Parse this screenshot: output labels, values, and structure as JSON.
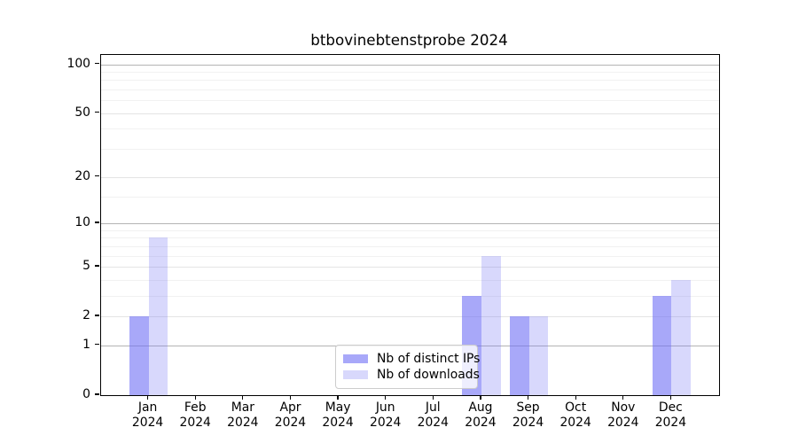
{
  "title": "btbovinebtenstprobe 2024",
  "chart_data": {
    "type": "bar",
    "title": "btbovinebtenstprobe 2024",
    "categories": [
      "Jan",
      "Feb",
      "Mar",
      "Apr",
      "May",
      "Jun",
      "Jul",
      "Aug",
      "Sep",
      "Oct",
      "Nov",
      "Dec"
    ],
    "x_year_label": "2024",
    "series": [
      {
        "name": "Nb of distinct IPs",
        "color": "#6e6ef5",
        "alpha": 0.6,
        "values": [
          2,
          0,
          0,
          0,
          0,
          0,
          0,
          3,
          2,
          0,
          0,
          3
        ]
      },
      {
        "name": "Nb of downloads",
        "color": "#6e6ef5",
        "alpha": 0.27,
        "values": [
          8,
          0,
          0,
          0,
          0,
          0,
          0,
          6,
          2,
          0,
          0,
          4
        ]
      }
    ],
    "y_axis": {
      "scale": "log10(1+x)",
      "max": 114,
      "tick_values": [
        100,
        50,
        20,
        10,
        5,
        2,
        1,
        0
      ],
      "decade_gridlines": [
        100,
        10,
        1
      ],
      "labeled_gridlines": [
        50,
        20,
        5,
        2
      ],
      "minor_gridlines": [
        90,
        80,
        70,
        60,
        40,
        30,
        15,
        9,
        8,
        7,
        6,
        4,
        3
      ]
    },
    "legend": {
      "position": "bottom-center",
      "entries": [
        "Nb of distinct IPs",
        "Nb of downloads"
      ]
    },
    "colors": {
      "spine": "#000000",
      "decade_grid": "#b4b4b4",
      "labeled_grid": "#e4e4e4",
      "minor_grid": "#f1f1f1",
      "text": "#000000"
    }
  }
}
